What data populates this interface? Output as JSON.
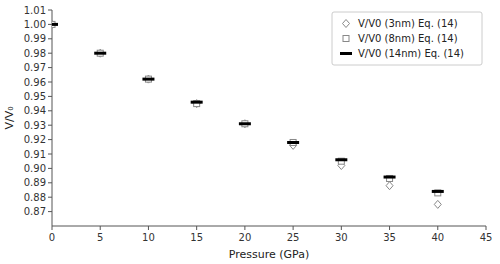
{
  "chart_data": {
    "type": "scatter",
    "xlabel": "Pressure (GPa)",
    "ylabel": "V/V₀",
    "x": [
      0,
      5,
      10,
      15,
      20,
      25,
      30,
      35,
      40
    ],
    "series": [
      {
        "name": "V/V0 (3nm) Eq. (14)",
        "color": "#888888",
        "marker": "diamond",
        "values": [
          1.0,
          0.98,
          0.962,
          0.945,
          0.931,
          0.916,
          0.902,
          0.888,
          0.875
        ]
      },
      {
        "name": "V/V0 (8nm) Eq. (14)",
        "color": "#888888",
        "marker": "square",
        "values": [
          1.0,
          0.98,
          0.962,
          0.945,
          0.931,
          0.918,
          0.905,
          0.893,
          0.883
        ]
      },
      {
        "name": "V/V0 (14nm) Eq. (14)",
        "color": "#000000",
        "marker": "dash",
        "values": [
          1.0,
          0.98,
          0.962,
          0.946,
          0.931,
          0.918,
          0.906,
          0.894,
          0.884
        ]
      }
    ],
    "xlim": [
      0,
      45
    ],
    "ylim": [
      0.86,
      1.01
    ],
    "xticks": [
      0,
      5,
      10,
      15,
      20,
      25,
      30,
      35,
      40,
      45
    ],
    "yticks": [
      0.87,
      0.88,
      0.89,
      {
        "value": 0.9,
        "label": "0.90"
      },
      0.91,
      0.92,
      0.93,
      0.94,
      0.95,
      0.96,
      0.97,
      0.98,
      0.99,
      {
        "value": 1.0,
        "label": "1.00"
      },
      1.01
    ],
    "grid": false,
    "legend": "upper right"
  }
}
